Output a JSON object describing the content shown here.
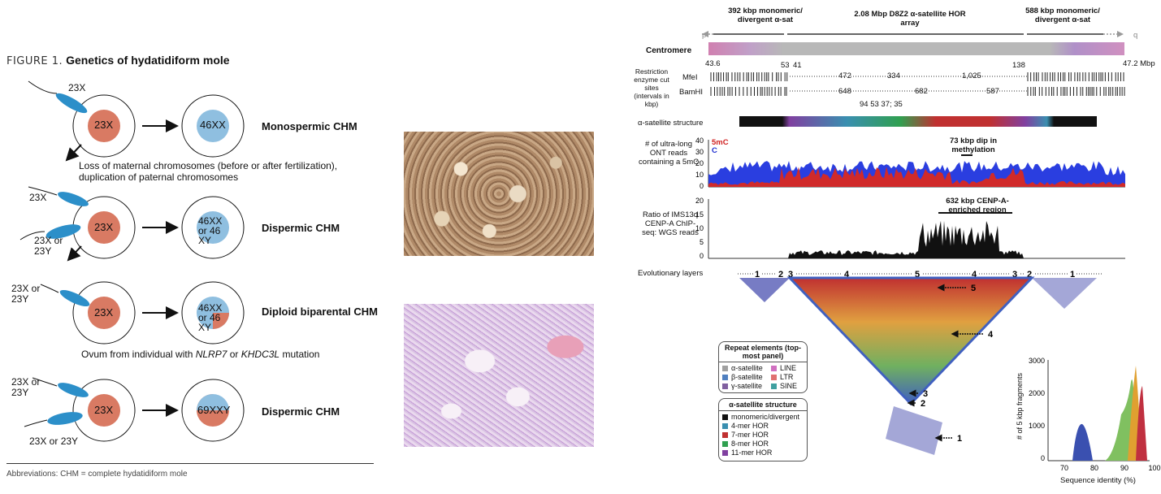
{
  "left_figure": {
    "figure_number": "FIGURE 1.",
    "title": "Genetics of hydatidiform mole",
    "rows": [
      {
        "sperm": [
          "23X"
        ],
        "ovum": "23X",
        "result": "46XX",
        "label": "Monospermic CHM",
        "note": "Loss of maternal chromosomes (before or after fertilization), duplication of paternal chromosomes"
      },
      {
        "sperm": [
          "23X",
          "23X or 23Y"
        ],
        "ovum": "23X",
        "result": "46XX or 46 XY",
        "label": "Dispermic CHM"
      },
      {
        "sperm": [
          "23X or 23Y"
        ],
        "ovum": "23X",
        "result": "46XX or 46 XY",
        "label": "Diploid biparental CHM",
        "note_parts": [
          "Ovum from individual with ",
          "NLRP7",
          " or ",
          "KHDC3L",
          " mutation"
        ]
      },
      {
        "sperm": [
          "23X or 23Y",
          "23X or 23Y"
        ],
        "ovum": "23X",
        "result": "69XXY",
        "label": "Dispermic CHM"
      }
    ],
    "abbreviations": "Abbreviations: CHM = complete hydatidiform mole",
    "colors": {
      "ovum": "#d97a63",
      "result": "#8fbfe0",
      "sperm": "#2c8fc9"
    }
  },
  "right_figure": {
    "top_labels": {
      "left": "392 kbp monomeric/ divergent α-sat",
      "center": "2.08 Mbp D8Z2 α-satellite HOR array",
      "right": "588 kbp monomeric/ divergent α-sat",
      "p": "p",
      "q": "q"
    },
    "centromere_label": "Centromere",
    "coord_start": "43.6",
    "coord_end": "47.2 Mbp",
    "restriction": {
      "label": "Restriction enzyme cut sites (intervals in kbp)",
      "mfel": {
        "name": "MfeI",
        "top_values": [
          "53",
          "41",
          "138"
        ],
        "intervals": [
          "472",
          "334",
          "1,025"
        ]
      },
      "bamhi": {
        "name": "BamHI",
        "intervals": [
          "648",
          "682",
          "587"
        ],
        "bottom_values": "94 53 37; 35"
      }
    },
    "alpha_structure_label": "α-satellite structure",
    "methylation": {
      "ylabel": "# of ultra-long ONT reads containing a 5mC",
      "legend_5mc": "5mC",
      "legend_c": "C",
      "annotation": "73 kbp dip in methylation",
      "yticks": [
        "40",
        "30",
        "20",
        "10",
        "0"
      ]
    },
    "cenpa": {
      "ylabel": "Ratio of IMS13q CENP-A ChIP-seq: WGS reads",
      "annotation": "632 kbp CENP-A-enriched region",
      "yticks": [
        "20",
        "15",
        "10",
        "5",
        "0"
      ]
    },
    "evolutionary": {
      "label": "Evolutionary layers",
      "layers": [
        "1",
        "2",
        "3",
        "4",
        "5",
        "4",
        "3",
        "2",
        "1"
      ],
      "arrow_labels": [
        "5",
        "4",
        "3",
        "2",
        "1"
      ]
    },
    "legend_repeat": {
      "title": "Repeat elements (top-most panel)",
      "items": [
        {
          "name": "α-satellite",
          "color": "#a0a0a0"
        },
        {
          "name": "LINE",
          "color": "#d070c0"
        },
        {
          "name": "β-satellite",
          "color": "#5080c0"
        },
        {
          "name": "LTR",
          "color": "#e07070"
        },
        {
          "name": "γ-satellite",
          "color": "#8060a0"
        },
        {
          "name": "SINE",
          "color": "#40a0a0"
        }
      ]
    },
    "legend_alpha": {
      "title": "α-satellite structure",
      "items": [
        {
          "name": "monomeric/divergent",
          "color": "#111111"
        },
        {
          "name": "4-mer HOR",
          "color": "#3a8fb0"
        },
        {
          "name": "7-mer HOR",
          "color": "#c03030"
        },
        {
          "name": "8-mer HOR",
          "color": "#30a050"
        },
        {
          "name": "11-mer HOR",
          "color": "#8040a0"
        }
      ]
    },
    "histogram": {
      "ylabel": "# of 5 kbp fragments",
      "xlabel": "Sequence identity (%)",
      "xticks": [
        "70",
        "80",
        "90",
        "100"
      ],
      "yticks": [
        "3000",
        "2000",
        "1000",
        "0"
      ]
    }
  }
}
